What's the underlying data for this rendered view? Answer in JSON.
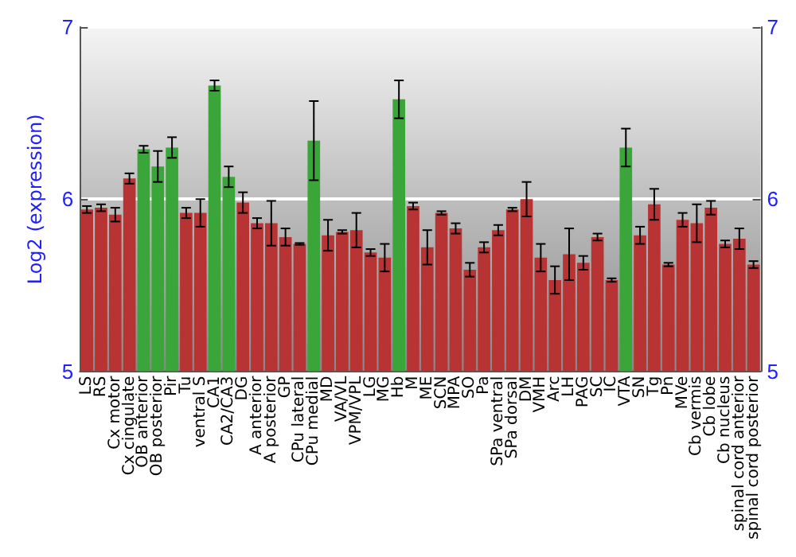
{
  "chart_data": {
    "type": "bar",
    "ylabel": "Log2 (expression)",
    "categories": [
      "LS",
      "RS",
      "Cx motor",
      "Cx cingulate",
      "OB anterior",
      "OB posterior",
      "Pir",
      "Tu",
      "ventral S",
      "CA1",
      "CA2/CA3",
      "DG",
      "A anterior",
      "A posterior",
      "GP",
      "CPu lateral",
      "CPu medial",
      "MD",
      "VA/VL",
      "VPM/VPL",
      "LG",
      "MG",
      "Hb",
      "M",
      "ME",
      "SCN",
      "MPA",
      "SO",
      "Pa",
      "SPa ventral",
      "SPa dorsal",
      "DM",
      "VMH",
      "Arc",
      "LH",
      "PAG",
      "SC",
      "IC",
      "VTA",
      "SN",
      "Tg",
      "Pn",
      "MVe",
      "Cb vermis",
      "Cb lobe",
      "Cb nucleus",
      "spinal cord anterior",
      "spinal cord posterior"
    ],
    "values": [
      5.94,
      5.95,
      5.91,
      6.12,
      6.29,
      6.19,
      6.3,
      5.92,
      5.92,
      6.66,
      6.13,
      5.98,
      5.86,
      5.86,
      5.78,
      5.74,
      6.34,
      5.79,
      5.81,
      5.82,
      5.69,
      5.66,
      6.58,
      5.96,
      5.72,
      5.92,
      5.83,
      5.59,
      5.72,
      5.82,
      5.94,
      6.0,
      5.66,
      5.53,
      5.68,
      5.63,
      5.78,
      5.53,
      6.3,
      5.79,
      5.97,
      5.62,
      5.88,
      5.86,
      5.95,
      5.74,
      5.77,
      5.62
    ],
    "errors": [
      0.02,
      0.02,
      0.04,
      0.03,
      0.02,
      0.09,
      0.06,
      0.03,
      0.08,
      0.03,
      0.06,
      0.06,
      0.03,
      0.13,
      0.05,
      0.005,
      0.23,
      0.09,
      0.01,
      0.1,
      0.02,
      0.08,
      0.11,
      0.02,
      0.1,
      0.01,
      0.03,
      0.04,
      0.03,
      0.03,
      0.01,
      0.1,
      0.08,
      0.08,
      0.15,
      0.04,
      0.02,
      0.01,
      0.11,
      0.05,
      0.09,
      0.01,
      0.04,
      0.11,
      0.04,
      0.02,
      0.06,
      0.02
    ],
    "colors": [
      "#b83434",
      "#b83434",
      "#b83434",
      "#b83434",
      "#3aa63a",
      "#3aa63a",
      "#3aa63a",
      "#b83434",
      "#b83434",
      "#3aa63a",
      "#3aa63a",
      "#b83434",
      "#b83434",
      "#b83434",
      "#b83434",
      "#b83434",
      "#3aa63a",
      "#b83434",
      "#b83434",
      "#b83434",
      "#b83434",
      "#b83434",
      "#3aa63a",
      "#b83434",
      "#b83434",
      "#b83434",
      "#b83434",
      "#b83434",
      "#b83434",
      "#b83434",
      "#b83434",
      "#b83434",
      "#b83434",
      "#b83434",
      "#b83434",
      "#b83434",
      "#b83434",
      "#b83434",
      "#3aa63a",
      "#b83434",
      "#b83434",
      "#b83434",
      "#b83434",
      "#b83434",
      "#b83434",
      "#b83434",
      "#b83434",
      "#b83434"
    ],
    "ylim": [
      5,
      7
    ],
    "yticks": [
      5,
      6,
      7
    ],
    "y2lim": [
      5,
      7
    ],
    "y2ticks": [
      5,
      6,
      7
    ],
    "grid": "y"
  }
}
